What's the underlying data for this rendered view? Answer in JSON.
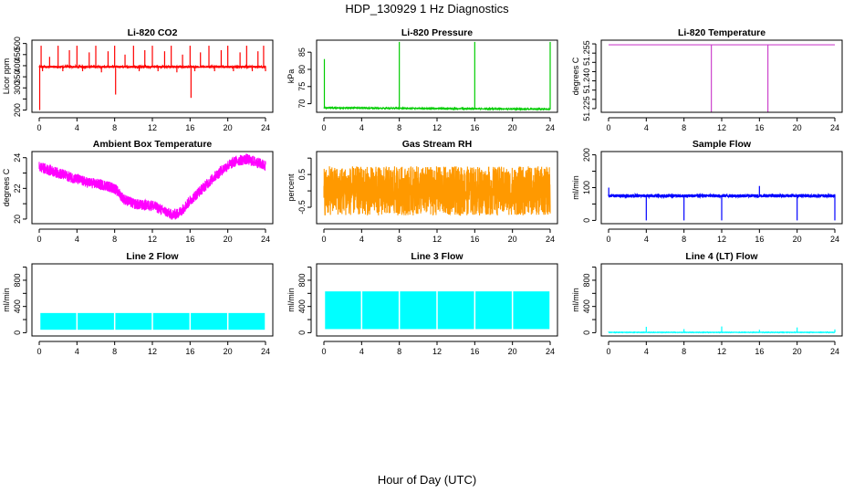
{
  "page": {
    "title": "HDP_130929  1 Hz Diagnostics",
    "xlabel": "Hour of Day (UTC)"
  },
  "chart_data": [
    {
      "type": "line",
      "title": "Li-820 CO2",
      "ylabel": "Licor ppm",
      "color": "#ff0000",
      "xlim": [
        0,
        24
      ],
      "xticks": [
        "0",
        "4",
        "8",
        "12",
        "16",
        "20",
        "24"
      ],
      "ylim": [
        190,
        515
      ],
      "yticks": [
        200,
        250,
        300,
        350,
        400,
        450,
        500
      ],
      "yticklabels": [
        "200",
        "",
        "300",
        "350",
        "400",
        "450",
        "500"
      ],
      "baseline": 395,
      "noise": 5,
      "spikes": [
        [
          0.05,
          200
        ],
        [
          0.2,
          490
        ],
        [
          0.35,
          375
        ],
        [
          1.1,
          440
        ],
        [
          2.0,
          490
        ],
        [
          2.5,
          375
        ],
        [
          3.2,
          470
        ],
        [
          4.0,
          490
        ],
        [
          4.6,
          375
        ],
        [
          5.3,
          460
        ],
        [
          6.0,
          490
        ],
        [
          6.6,
          370
        ],
        [
          7.3,
          465
        ],
        [
          8.0,
          490
        ],
        [
          8.1,
          270
        ],
        [
          9.1,
          450
        ],
        [
          10.0,
          490
        ],
        [
          10.6,
          375
        ],
        [
          11.2,
          470
        ],
        [
          12.0,
          490
        ],
        [
          12.6,
          375
        ],
        [
          13.3,
          465
        ],
        [
          14.0,
          490
        ],
        [
          14.6,
          370
        ],
        [
          15.2,
          450
        ],
        [
          16.0,
          490
        ],
        [
          16.1,
          255
        ],
        [
          16.5,
          375
        ],
        [
          17.1,
          460
        ],
        [
          18.0,
          490
        ],
        [
          18.6,
          375
        ],
        [
          19.3,
          470
        ],
        [
          20.0,
          490
        ],
        [
          20.6,
          375
        ],
        [
          21.3,
          460
        ],
        [
          22.0,
          490
        ],
        [
          22.6,
          375
        ],
        [
          23.2,
          465
        ],
        [
          23.8,
          490
        ],
        [
          24.0,
          375
        ]
      ]
    },
    {
      "type": "line",
      "title": "Li-820 Pressure",
      "ylabel": "kPa",
      "color": "#00cc00",
      "xlim": [
        0,
        24
      ],
      "xticks": [
        "0",
        "4",
        "8",
        "12",
        "16",
        "20",
        "24"
      ],
      "ylim": [
        67.5,
        88.5
      ],
      "yticks": [
        70,
        75,
        80,
        85
      ],
      "yticklabels": [
        "70",
        "75",
        "80",
        "85"
      ],
      "baseline_start": 68.8,
      "baseline_end": 68.4,
      "noise": 0.1,
      "spikes": [
        [
          0.05,
          83.0
        ],
        [
          8.0,
          88.0
        ],
        [
          16.0,
          88.0
        ],
        [
          24.0,
          88.0
        ]
      ]
    },
    {
      "type": "line",
      "title": "Li-820 Temperature",
      "ylabel": "degrees C",
      "color": "#cc44cc",
      "xlim": [
        0,
        24
      ],
      "xticks": [
        "0",
        "4",
        "8",
        "12",
        "16",
        "20",
        "24"
      ],
      "ylim": [
        51.223,
        51.262
      ],
      "yticks": [
        51.225,
        51.23,
        51.235,
        51.24,
        51.245,
        51.25,
        51.255,
        51.26
      ],
      "yticklabels": [
        "51.225",
        "",
        "",
        "51.240",
        "",
        "",
        "51.255",
        ""
      ],
      "baseline": 51.2595,
      "noise": 0,
      "spikes": [
        [
          10.9,
          51.223
        ],
        [
          16.9,
          51.223
        ]
      ]
    },
    {
      "type": "line",
      "title": "Ambient Box Temperature",
      "ylabel": "degrees C",
      "color": "#ff00ff",
      "xlim": [
        0,
        24
      ],
      "xticks": [
        "0",
        "4",
        "8",
        "12",
        "16",
        "20",
        "24"
      ],
      "ylim": [
        19.7,
        24.4
      ],
      "yticks": [
        20,
        21,
        22,
        23,
        24
      ],
      "yticklabels": [
        "20",
        "",
        "22",
        "",
        "24"
      ],
      "x": [
        0,
        1,
        2,
        3,
        4,
        5,
        6,
        7,
        8,
        9,
        10,
        11,
        12,
        13,
        14,
        14.5,
        15,
        16,
        17,
        18,
        19,
        20,
        21,
        22,
        23,
        24
      ],
      "y": [
        23.4,
        23.2,
        23.0,
        22.8,
        22.6,
        22.4,
        22.3,
        22.2,
        22.0,
        21.3,
        21.0,
        20.9,
        20.9,
        20.6,
        20.3,
        20.3,
        20.5,
        21.2,
        21.8,
        22.4,
        23.0,
        23.5,
        23.8,
        23.9,
        23.7,
        23.5
      ],
      "noise": 0.35
    },
    {
      "type": "line",
      "title": "Gas Stream RH",
      "ylabel": "percent",
      "color": "#ff9900",
      "xlim": [
        0,
        24
      ],
      "xticks": [
        "0",
        "4",
        "8",
        "12",
        "16",
        "20",
        "24"
      ],
      "ylim": [
        -1.0,
        1.2
      ],
      "yticks": [
        -0.5,
        0.0,
        0.5,
        1.0
      ],
      "yticklabels": [
        "-0.5",
        "",
        "0.5",
        ""
      ],
      "baseline": 0.0,
      "noise": 0.75
    },
    {
      "type": "line",
      "title": "Sample Flow",
      "ylabel": "ml/min",
      "color": "#0000ff",
      "xlim": [
        0,
        24
      ],
      "xticks": [
        "0",
        "4",
        "8",
        "12",
        "16",
        "20",
        "24"
      ],
      "ylim": [
        -10,
        210
      ],
      "yticks": [
        0,
        50,
        100,
        150,
        200
      ],
      "yticklabels": [
        "0",
        "",
        "100",
        "",
        "200"
      ],
      "baseline": 75,
      "noise": 5,
      "spikes": [
        [
          0.02,
          100
        ],
        [
          4.0,
          0
        ],
        [
          8.0,
          0
        ],
        [
          12.0,
          0
        ],
        [
          16.0,
          105
        ],
        [
          20.0,
          0
        ],
        [
          24.0,
          0
        ]
      ]
    },
    {
      "type": "line",
      "title": "Line 2 Flow",
      "ylabel": "ml/min",
      "color": "#00ffff",
      "xlim": [
        0,
        24
      ],
      "xticks": [
        "0",
        "4",
        "8",
        "12",
        "16",
        "20",
        "24"
      ],
      "ylim": [
        -50,
        1050
      ],
      "yticks": [
        0,
        200,
        400,
        600,
        800,
        1000
      ],
      "yticklabels": [
        "0",
        "",
        "400",
        "",
        "800",
        ""
      ],
      "band": [
        45,
        300
      ],
      "gaps": [
        0.05,
        4.0,
        8.0,
        12.0,
        16.0,
        20.0,
        24.0
      ]
    },
    {
      "type": "line",
      "title": "Line 3 Flow",
      "ylabel": "ml/min",
      "color": "#00ffff",
      "xlim": [
        0,
        24
      ],
      "xticks": [
        "0",
        "4",
        "8",
        "12",
        "16",
        "20",
        "24"
      ],
      "ylim": [
        -50,
        1050
      ],
      "yticks": [
        0,
        200,
        400,
        600,
        800,
        1000
      ],
      "yticklabels": [
        "0",
        "",
        "400",
        "",
        "800",
        ""
      ],
      "band": [
        55,
        630
      ],
      "gaps": [
        0.05,
        4.0,
        8.0,
        12.0,
        16.0,
        20.0,
        24.0
      ]
    },
    {
      "type": "line",
      "title": "Line 4 (LT) Flow",
      "ylabel": "ml/min",
      "color": "#00ffff",
      "xlim": [
        0,
        24
      ],
      "xticks": [
        "0",
        "4",
        "8",
        "12",
        "16",
        "20",
        "24"
      ],
      "ylim": [
        -50,
        1050
      ],
      "yticks": [
        0,
        200,
        400,
        600,
        800,
        1000
      ],
      "yticklabels": [
        "0",
        "",
        "400",
        "",
        "800",
        ""
      ],
      "baseline": 5,
      "noise": 2,
      "spikes": [
        [
          4.0,
          90
        ],
        [
          8.0,
          55
        ],
        [
          12.0,
          95
        ],
        [
          16.0,
          45
        ],
        [
          20.0,
          80
        ],
        [
          24.0,
          50
        ]
      ]
    }
  ]
}
